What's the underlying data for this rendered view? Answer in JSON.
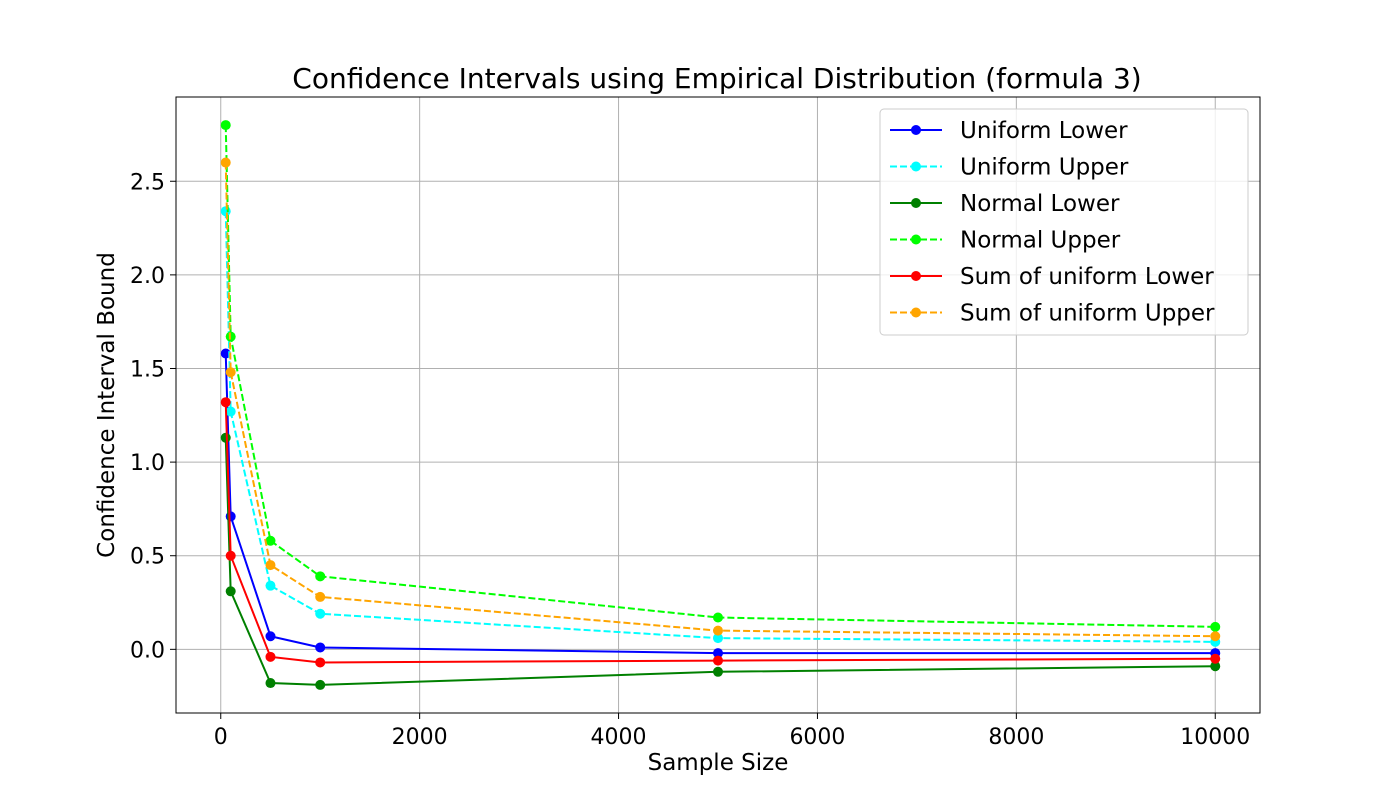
{
  "chart_data": {
    "type": "line",
    "title": "Confidence Intervals using Empirical Distribution (formula 3)",
    "xlabel": "Sample Size",
    "ylabel": "Confidence Interval Bound",
    "x": [
      50,
      100,
      500,
      1000,
      5000,
      10000
    ],
    "xlim": [
      -450,
      10450
    ],
    "ylim": [
      -0.34,
      2.95
    ],
    "xticks": [
      0,
      2000,
      4000,
      6000,
      8000,
      10000
    ],
    "xtick_labels": [
      "0",
      "2000",
      "4000",
      "6000",
      "8000",
      "10000"
    ],
    "yticks": [
      0.0,
      0.5,
      1.0,
      1.5,
      2.0,
      2.5
    ],
    "ytick_labels": [
      "0.0",
      "0.5",
      "1.0",
      "1.5",
      "2.0",
      "2.5"
    ],
    "grid": true,
    "legend_position": "top-right",
    "series": [
      {
        "name": "Uniform Lower",
        "color": "#0000ff",
        "style": "solid",
        "values": [
          1.58,
          0.71,
          0.07,
          0.01,
          -0.02,
          -0.02
        ]
      },
      {
        "name": "Uniform Upper",
        "color": "#00ffff",
        "style": "dashed",
        "values": [
          2.34,
          1.27,
          0.34,
          0.19,
          0.06,
          0.04
        ]
      },
      {
        "name": "Normal Lower",
        "color": "#008000",
        "style": "solid",
        "values": [
          1.13,
          0.31,
          -0.18,
          -0.19,
          -0.12,
          -0.09
        ]
      },
      {
        "name": "Normal Upper",
        "color": "#00ff00",
        "style": "dashed",
        "values": [
          2.8,
          1.67,
          0.58,
          0.39,
          0.17,
          0.12
        ]
      },
      {
        "name": "Sum of uniform Lower",
        "color": "#ff0000",
        "style": "solid",
        "values": [
          1.32,
          0.5,
          -0.04,
          -0.07,
          -0.06,
          -0.05
        ]
      },
      {
        "name": "Sum of uniform Upper",
        "color": "#ffa500",
        "style": "dashed",
        "values": [
          2.6,
          1.48,
          0.45,
          0.28,
          0.1,
          0.07
        ]
      }
    ]
  }
}
